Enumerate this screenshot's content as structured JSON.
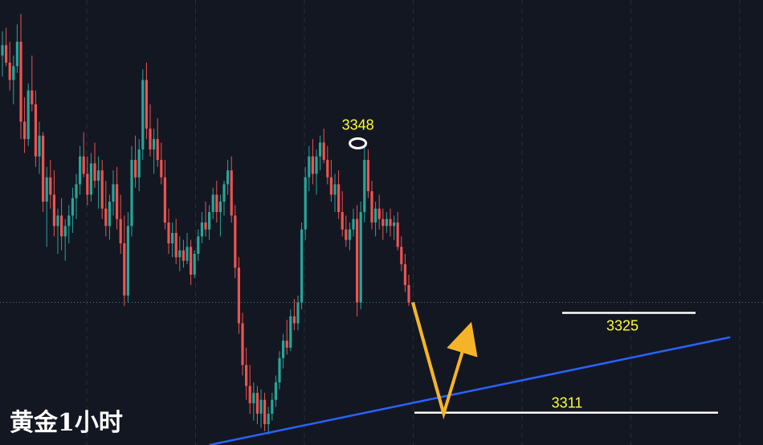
{
  "title": "黄金1小时",
  "chart_data": {
    "type": "candlestick",
    "title": "黄金1小时",
    "ylim": [
      3306,
      3370
    ],
    "grid": "vertical-dashed",
    "colors": {
      "up": "#26a69a",
      "down": "#ef5350",
      "background": "#131722",
      "trendline": "#2962ff",
      "annotation": "#ffff33",
      "arrow": "#f5b428",
      "level_line": "#ffffff"
    },
    "candles": [
      [
        3362.0,
        3365.5,
        3359.0,
        3363.5
      ],
      [
        3363.5,
        3366.0,
        3360.5,
        3361.0
      ],
      [
        3361.0,
        3364.0,
        3357.0,
        3358.5
      ],
      [
        3358.5,
        3362.0,
        3355.0,
        3360.5
      ],
      [
        3360.5,
        3366.5,
        3359.5,
        3364.0
      ],
      [
        3364.0,
        3368.0,
        3350.0,
        3352.5
      ],
      [
        3352.5,
        3356.0,
        3348.0,
        3350.0
      ],
      [
        3350.0,
        3358.0,
        3349.0,
        3357.0
      ],
      [
        3357.0,
        3362.0,
        3354.0,
        3355.0
      ],
      [
        3355.0,
        3357.0,
        3346.0,
        3347.5
      ],
      [
        3347.5,
        3352.5,
        3345.0,
        3350.5
      ],
      [
        3350.5,
        3351.0,
        3339.5,
        3341.0
      ],
      [
        3341.0,
        3346.0,
        3334.5,
        3344.5
      ],
      [
        3344.5,
        3347.0,
        3340.0,
        3342.0
      ],
      [
        3342.0,
        3345.5,
        3336.0,
        3337.5
      ],
      [
        3337.5,
        3340.0,
        3333.5,
        3339.0
      ],
      [
        3339.0,
        3341.5,
        3334.0,
        3336.0
      ],
      [
        3336.0,
        3338.5,
        3332.5,
        3337.5
      ],
      [
        3337.5,
        3340.5,
        3335.0,
        3339.0
      ],
      [
        3339.0,
        3343.0,
        3336.5,
        3341.5
      ],
      [
        3341.5,
        3345.0,
        3338.5,
        3343.5
      ],
      [
        3343.5,
        3349.0,
        3342.0,
        3347.5
      ],
      [
        3347.5,
        3351.0,
        3344.5,
        3345.0
      ],
      [
        3345.0,
        3347.5,
        3340.5,
        3342.0
      ],
      [
        3342.0,
        3348.0,
        3341.0,
        3346.5
      ],
      [
        3346.5,
        3349.5,
        3343.0,
        3344.0
      ],
      [
        3344.0,
        3347.5,
        3340.0,
        3345.5
      ],
      [
        3345.5,
        3347.0,
        3338.5,
        3340.0
      ],
      [
        3340.0,
        3344.0,
        3336.0,
        3337.5
      ],
      [
        3337.5,
        3342.0,
        3335.5,
        3341.0
      ],
      [
        3341.0,
        3345.5,
        3339.0,
        3343.5
      ],
      [
        3343.5,
        3346.0,
        3337.0,
        3338.5
      ],
      [
        3338.5,
        3342.0,
        3333.5,
        3335.0
      ],
      [
        3335.0,
        3339.0,
        3326.0,
        3327.5
      ],
      [
        3327.5,
        3339.5,
        3326.5,
        3337.5
      ],
      [
        3337.5,
        3349.0,
        3336.0,
        3347.0
      ],
      [
        3347.0,
        3350.5,
        3343.0,
        3344.5
      ],
      [
        3344.5,
        3350.0,
        3342.5,
        3348.5
      ],
      [
        3348.5,
        3360.0,
        3347.0,
        3358.5
      ],
      [
        3358.5,
        3361.0,
        3350.0,
        3351.5
      ],
      [
        3351.5,
        3355.0,
        3347.5,
        3348.5
      ],
      [
        3348.5,
        3351.5,
        3345.0,
        3350.0
      ],
      [
        3350.0,
        3353.0,
        3346.0,
        3347.0
      ],
      [
        3347.0,
        3349.5,
        3343.5,
        3344.5
      ],
      [
        3344.5,
        3347.0,
        3337.0,
        3338.0
      ],
      [
        3338.0,
        3340.0,
        3333.5,
        3335.0
      ],
      [
        3335.0,
        3338.0,
        3333.0,
        3336.5
      ],
      [
        3336.5,
        3338.5,
        3332.0,
        3333.0
      ],
      [
        3333.0,
        3336.0,
        3331.0,
        3334.0
      ],
      [
        3334.0,
        3335.5,
        3331.5,
        3332.5
      ],
      [
        3332.5,
        3336.5,
        3332.0,
        3334.5
      ],
      [
        3334.5,
        3335.5,
        3329.0,
        3330.5
      ],
      [
        3330.5,
        3334.0,
        3330.0,
        3333.5
      ],
      [
        3333.5,
        3337.0,
        3332.5,
        3336.0
      ],
      [
        3336.0,
        3339.5,
        3335.0,
        3338.0
      ],
      [
        3338.0,
        3341.0,
        3336.0,
        3337.0
      ],
      [
        3337.0,
        3340.5,
        3335.5,
        3339.5
      ],
      [
        3339.5,
        3343.0,
        3338.5,
        3342.0
      ],
      [
        3342.0,
        3344.0,
        3338.0,
        3339.5
      ],
      [
        3339.5,
        3342.0,
        3336.0,
        3341.0
      ],
      [
        3341.0,
        3344.0,
        3339.0,
        3343.5
      ],
      [
        3343.5,
        3347.0,
        3342.0,
        3345.5
      ],
      [
        3345.5,
        3347.5,
        3338.0,
        3339.0
      ],
      [
        3339.0,
        3340.5,
        3330.0,
        3331.5
      ],
      [
        3331.5,
        3333.0,
        3322.0,
        3323.5
      ],
      [
        3323.5,
        3325.0,
        3316.0,
        3317.5
      ],
      [
        3317.5,
        3320.0,
        3312.5,
        3314.5
      ],
      [
        3314.5,
        3317.5,
        3310.5,
        3312.0
      ],
      [
        3312.0,
        3315.0,
        3309.5,
        3313.5
      ],
      [
        3313.5,
        3314.5,
        3309.0,
        3310.5
      ],
      [
        3310.5,
        3314.0,
        3308.5,
        3312.5
      ],
      [
        3312.5,
        3313.5,
        3308.0,
        3309.0
      ],
      [
        3309.0,
        3311.5,
        3307.5,
        3310.5
      ],
      [
        3310.5,
        3313.5,
        3309.5,
        3312.5
      ],
      [
        3312.5,
        3316.0,
        3311.5,
        3315.0
      ],
      [
        3315.0,
        3319.5,
        3314.0,
        3318.5
      ],
      [
        3318.5,
        3322.0,
        3317.0,
        3321.0
      ],
      [
        3321.0,
        3324.0,
        3319.0,
        3320.0
      ],
      [
        3320.0,
        3325.5,
        3319.5,
        3324.5
      ],
      [
        3324.5,
        3327.0,
        3322.5,
        3323.5
      ],
      [
        3323.5,
        3327.5,
        3322.5,
        3326.5
      ],
      [
        3326.5,
        3338.0,
        3325.5,
        3337.0
      ],
      [
        3337.0,
        3346.0,
        3335.5,
        3344.5
      ],
      [
        3344.5,
        3349.0,
        3342.5,
        3347.5
      ],
      [
        3347.5,
        3350.0,
        3343.5,
        3345.0
      ],
      [
        3345.0,
        3348.5,
        3342.0,
        3347.5
      ],
      [
        3347.5,
        3350.5,
        3345.5,
        3349.5
      ],
      [
        3349.5,
        3351.5,
        3346.5,
        3347.0
      ],
      [
        3347.0,
        3349.0,
        3343.5,
        3344.5
      ],
      [
        3344.5,
        3347.0,
        3341.0,
        3342.0
      ],
      [
        3342.0,
        3345.0,
        3339.5,
        3343.5
      ],
      [
        3343.5,
        3345.5,
        3338.5,
        3339.5
      ],
      [
        3339.5,
        3342.5,
        3336.0,
        3337.0
      ],
      [
        3337.0,
        3339.0,
        3334.5,
        3335.5
      ],
      [
        3335.5,
        3338.0,
        3334.0,
        3337.0
      ],
      [
        3337.0,
        3340.0,
        3336.0,
        3338.5
      ],
      [
        3338.5,
        3340.5,
        3324.5,
        3326.5
      ],
      [
        3326.5,
        3341.0,
        3325.5,
        3339.5
      ],
      [
        3339.5,
        3349.0,
        3338.0,
        3347.0
      ],
      [
        3347.0,
        3348.5,
        3341.5,
        3342.5
      ],
      [
        3342.5,
        3344.0,
        3337.0,
        3338.0
      ],
      [
        3338.0,
        3341.0,
        3336.0,
        3340.0
      ],
      [
        3340.0,
        3342.0,
        3337.0,
        3338.5
      ],
      [
        3338.5,
        3340.0,
        3335.5,
        3337.5
      ],
      [
        3337.5,
        3339.5,
        3336.5,
        3338.5
      ],
      [
        3338.5,
        3340.0,
        3336.0,
        3337.5
      ],
      [
        3337.5,
        3339.0,
        3335.5,
        3338.0
      ],
      [
        3338.0,
        3339.5,
        3334.0,
        3334.5
      ],
      [
        3334.5,
        3336.0,
        3331.0,
        3332.0
      ],
      [
        3332.0,
        3333.5,
        3328.0,
        3329.0
      ],
      [
        3329.0,
        3330.5,
        3326.0,
        3326.5
      ]
    ],
    "levels": [
      {
        "label": "3348",
        "value": 3348,
        "marker": "ellipse"
      },
      {
        "label": "3325",
        "value": 3325
      },
      {
        "label": "3311",
        "value": 3311
      }
    ],
    "trendline": {
      "from": [
        56,
        3306
      ],
      "to": [
        197,
        3321.5
      ]
    },
    "projection": {
      "path": [
        [
          3326.5,
          0
        ],
        [
          3310.5,
          8
        ],
        [
          3321.5,
          14
        ]
      ]
    }
  }
}
